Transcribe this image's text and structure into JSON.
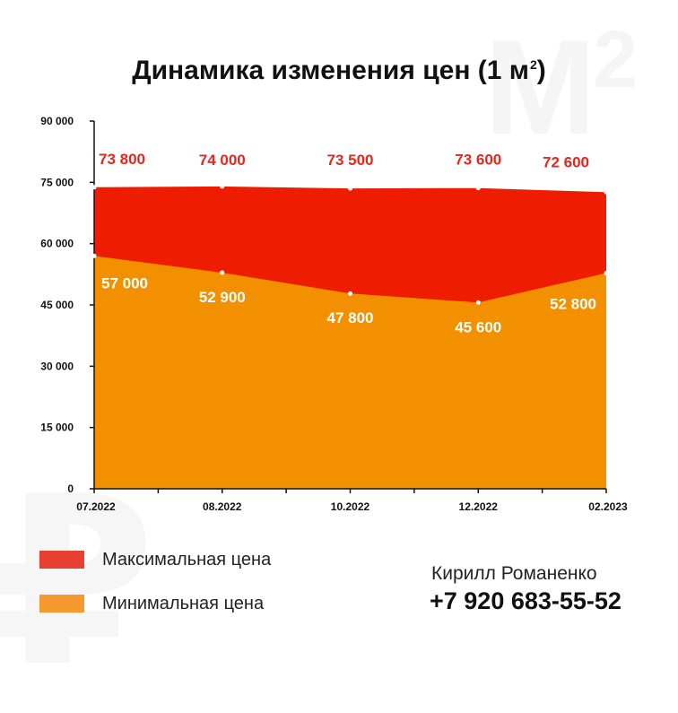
{
  "chart_data": {
    "type": "area",
    "title": "Динамика изменения цен (1 м",
    "title_superscript": "2",
    "categories": [
      "07.2022",
      "08.2022",
      "10.2022",
      "12.2022",
      "02.2023"
    ],
    "series": [
      {
        "name": "Максимальная цена",
        "color": "#ee1c00",
        "legend_color": "#e84133",
        "values": [
          73800,
          74000,
          73500,
          73600,
          72600
        ],
        "labels": [
          "73 800",
          "74 000",
          "73 500",
          "73 600",
          "72 600"
        ]
      },
      {
        "name": "Минимальная цена",
        "color": "#f29000",
        "legend_color": "#f59a30",
        "values": [
          57000,
          52900,
          47800,
          45600,
          52800
        ],
        "labels": [
          "57 000",
          "52 900",
          "47 800",
          "45 600",
          "52 800"
        ]
      }
    ],
    "ylim": [
      0,
      90000
    ],
    "yticks": [
      0,
      15000,
      30000,
      45000,
      60000,
      75000,
      90000
    ],
    "ytick_labels": [
      "0",
      "15 000",
      "30 000",
      "45 000",
      "60 000",
      "75 000",
      "90 000"
    ],
    "grid": false,
    "legend": "bottom-left",
    "max_label_color": "#e8261b",
    "min_label_color": "#ffffff"
  },
  "watermarks": {
    "top_right": "M",
    "top_right_sup": "2",
    "bottom_left": "₽"
  },
  "contact": {
    "name": "Кирилл Романенко",
    "phone": "+7 920 683-55-52"
  }
}
